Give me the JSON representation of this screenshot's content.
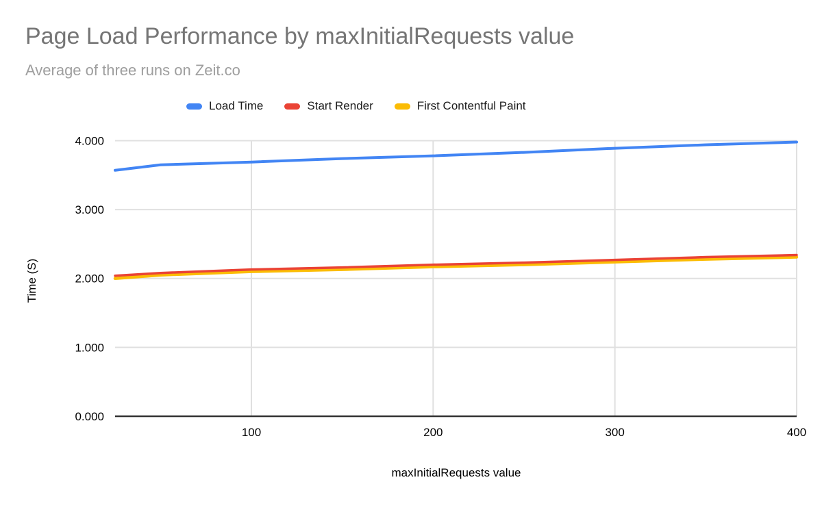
{
  "header": {
    "title": "Page Load Performance by maxInitialRequests value",
    "subtitle": "Average of three runs on Zeit.co"
  },
  "axes": {
    "y_title": "Time (S)",
    "x_title": "maxInitialRequests value"
  },
  "colors": {
    "title_gray": "#757575",
    "subtitle_gray": "#9e9e9e",
    "gridline": "#e0e0e0",
    "axis_line": "#333333",
    "tick_label": "#000000"
  },
  "chart_data": {
    "type": "line",
    "title": "Page Load Performance by maxInitialRequests value",
    "subtitle": "Average of three runs on Zeit.co",
    "xlabel": "maxInitialRequests value",
    "ylabel": "Time (S)",
    "x": [
      25,
      50,
      100,
      150,
      200,
      250,
      300,
      350,
      400
    ],
    "series": [
      {
        "name": "Load Time",
        "color": "#4285f4",
        "values": [
          3.57,
          3.65,
          3.69,
          3.74,
          3.78,
          3.83,
          3.89,
          3.94,
          3.98
        ]
      },
      {
        "name": "Start Render",
        "color": "#ea4335",
        "values": [
          2.04,
          2.08,
          2.13,
          2.16,
          2.2,
          2.23,
          2.27,
          2.31,
          2.34
        ]
      },
      {
        "name": "First Contentful Paint",
        "color": "#fbbc04",
        "values": [
          2.0,
          2.05,
          2.1,
          2.13,
          2.17,
          2.2,
          2.24,
          2.28,
          2.31
        ]
      }
    ],
    "xlim": [
      25,
      400
    ],
    "ylim": [
      0,
      4
    ],
    "x_ticks": [
      100,
      200,
      300,
      400
    ],
    "y_ticks": [
      0,
      1,
      2,
      3,
      4
    ],
    "y_tick_labels": [
      "0.000",
      "1.000",
      "2.000",
      "3.000",
      "4.000"
    ],
    "grid": true,
    "legend_position": "top"
  }
}
